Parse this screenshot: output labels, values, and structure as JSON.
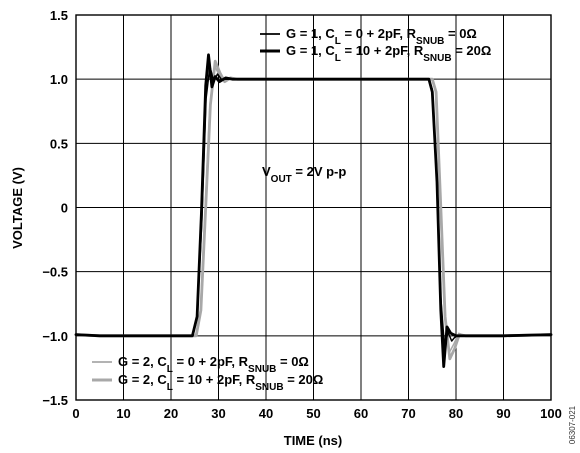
{
  "chart_data": {
    "type": "line",
    "xlabel": "TIME (ns)",
    "ylabel": "VOLTAGE (V)",
    "xlim": [
      0,
      100
    ],
    "ylim": [
      -1.5,
      1.5
    ],
    "xticks": [
      0,
      10,
      20,
      30,
      40,
      50,
      60,
      70,
      80,
      90,
      100
    ],
    "yticks": [
      1.5,
      1.0,
      0.5,
      0,
      -0.5,
      -1.0,
      -1.5
    ],
    "xtick_labels": [
      "0",
      "10",
      "20",
      "30",
      "40",
      "50",
      "60",
      "70",
      "80",
      "90",
      "100"
    ],
    "ytick_labels": [
      "1.5",
      "1.0",
      "0.5",
      "0",
      "−0.5",
      "−1.0",
      "−1.5"
    ],
    "grid": true,
    "annotation": {
      "main": "V",
      "sub": "OUT",
      "rest": " = 2V p-p"
    },
    "figure_id": "06307-021",
    "series": [
      {
        "legend": {
          "prefix": "G = 1, C",
          "sub1": "L",
          "mid": " = 0 + 2pF, R",
          "sub2": "SNUB",
          "suffix": " = 0Ω"
        },
        "color": "#000000",
        "width": 1.5,
        "points": [
          [
            0,
            -0.99
          ],
          [
            5,
            -1.0
          ],
          [
            20,
            -1.0
          ],
          [
            24.5,
            -1.0
          ],
          [
            25.5,
            -0.85
          ],
          [
            26.5,
            -0.1
          ],
          [
            27.4,
            0.85
          ],
          [
            28.2,
            1.1
          ],
          [
            29,
            0.98
          ],
          [
            29.8,
            1.04
          ],
          [
            30.6,
            1.0
          ],
          [
            32,
            1.0
          ],
          [
            40,
            1.0
          ],
          [
            60,
            1.0
          ],
          [
            74.3,
            1.0
          ],
          [
            75,
            0.92
          ],
          [
            76,
            0.2
          ],
          [
            76.8,
            -0.7
          ],
          [
            77.6,
            -1.1
          ],
          [
            78.3,
            -0.97
          ],
          [
            79.1,
            -1.04
          ],
          [
            80,
            -1.0
          ],
          [
            82,
            -1.0
          ],
          [
            90,
            -1.0
          ],
          [
            100,
            -0.99
          ]
        ]
      },
      {
        "legend": {
          "prefix": "G = 1, C",
          "sub1": "L",
          "mid": " = 10 + 2pF, R",
          "sub2": "SNUB",
          "suffix": " = 20Ω"
        },
        "color": "#000000",
        "width": 2.8,
        "points": [
          [
            0,
            -0.99
          ],
          [
            5,
            -1.0
          ],
          [
            20,
            -1.0
          ],
          [
            24.5,
            -1.0
          ],
          [
            25.5,
            -0.85
          ],
          [
            26.4,
            -0.05
          ],
          [
            27.3,
            0.95
          ],
          [
            27.9,
            1.19
          ],
          [
            28.6,
            0.94
          ],
          [
            29.3,
            1.02
          ],
          [
            30.2,
            0.98
          ],
          [
            31.5,
            1.01
          ],
          [
            33,
            1.0
          ],
          [
            40,
            1.0
          ],
          [
            60,
            1.0
          ],
          [
            74.3,
            1.0
          ],
          [
            75,
            0.9
          ],
          [
            76,
            0.2
          ],
          [
            76.8,
            -0.8
          ],
          [
            77.4,
            -1.24
          ],
          [
            78.1,
            -0.93
          ],
          [
            78.9,
            -0.98
          ],
          [
            80,
            -1.0
          ],
          [
            82,
            -1.0
          ],
          [
            90,
            -1.0
          ],
          [
            100,
            -0.99
          ]
        ]
      },
      {
        "legend": {
          "prefix": "G = 2, C",
          "sub1": "L",
          "mid": " = 0 + 2pF, R",
          "sub2": "SNUB",
          "suffix": " = 0Ω"
        },
        "color": "#a8a8a8",
        "width": 1.5,
        "points": [
          [
            0,
            -0.99
          ],
          [
            5,
            -1.0
          ],
          [
            20,
            -1.0
          ],
          [
            25.2,
            -1.0
          ],
          [
            26.2,
            -0.8
          ],
          [
            27.2,
            0.0
          ],
          [
            28.2,
            0.8
          ],
          [
            29.2,
            1.1
          ],
          [
            30.2,
            1.03
          ],
          [
            31.2,
            0.98
          ],
          [
            32.5,
            1.0
          ],
          [
            40,
            1.0
          ],
          [
            60,
            1.0
          ],
          [
            75,
            1.0
          ],
          [
            75.7,
            0.9
          ],
          [
            76.6,
            0.1
          ],
          [
            77.6,
            -0.85
          ],
          [
            78.6,
            -1.13
          ],
          [
            79.6,
            -1.06
          ],
          [
            80.6,
            -0.98
          ],
          [
            82,
            -1.0
          ],
          [
            90,
            -1.0
          ],
          [
            100,
            -0.99
          ]
        ]
      },
      {
        "legend": {
          "prefix": "G = 2, C",
          "sub1": "L",
          "mid": " = 10 + 2pF, R",
          "sub2": "SNUB",
          "suffix": " = 20Ω"
        },
        "color": "#a8a8a8",
        "width": 2.8,
        "points": [
          [
            0,
            -0.99
          ],
          [
            5,
            -1.0
          ],
          [
            20,
            -1.0
          ],
          [
            25.3,
            -1.0
          ],
          [
            26.3,
            -0.8
          ],
          [
            27.3,
            0.0
          ],
          [
            28.3,
            0.8
          ],
          [
            29.3,
            1.14
          ],
          [
            30.3,
            1.05
          ],
          [
            31.3,
            0.98
          ],
          [
            32.5,
            1.01
          ],
          [
            34,
            1.0
          ],
          [
            40,
            1.0
          ],
          [
            60,
            1.0
          ],
          [
            75,
            1.0
          ],
          [
            75.8,
            0.9
          ],
          [
            76.7,
            0.1
          ],
          [
            77.7,
            -0.85
          ],
          [
            78.7,
            -1.18
          ],
          [
            79.7,
            -1.1
          ],
          [
            80.7,
            -0.99
          ],
          [
            82,
            -1.0
          ],
          [
            90,
            -1.0
          ],
          [
            100,
            -0.99
          ]
        ]
      }
    ]
  }
}
